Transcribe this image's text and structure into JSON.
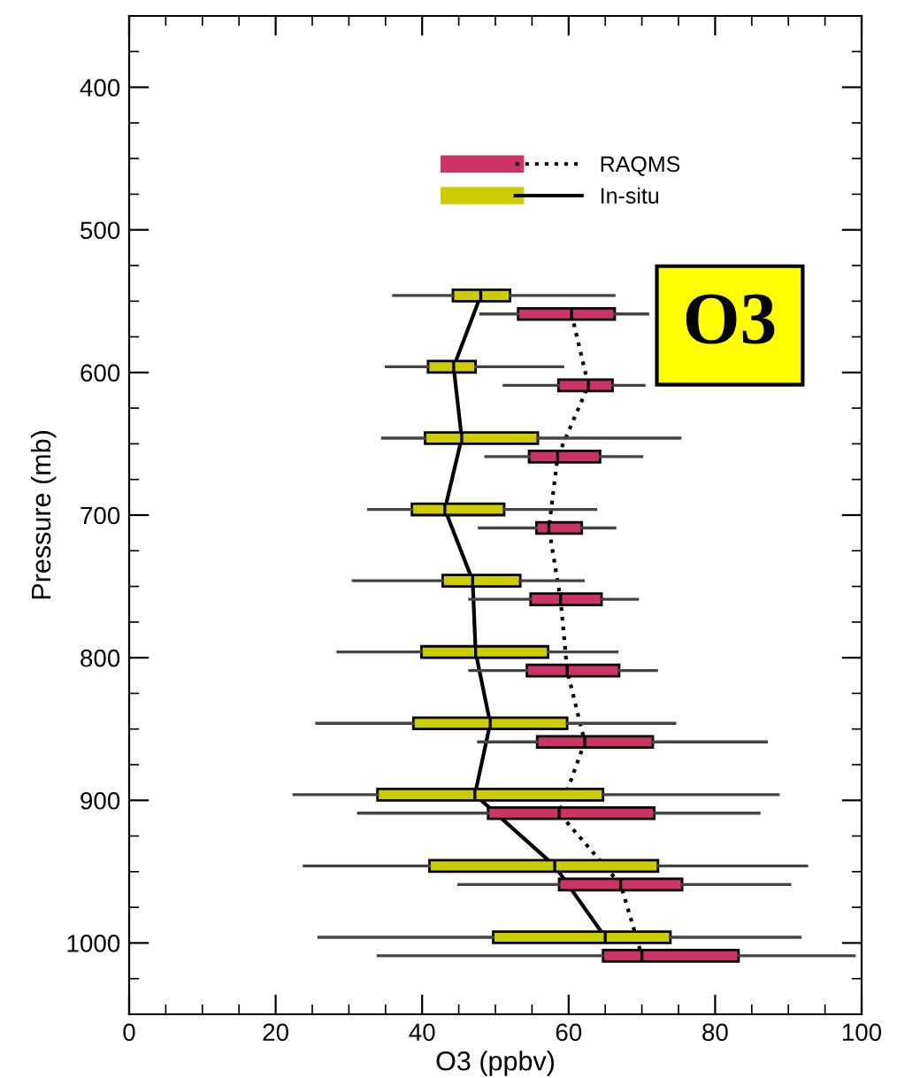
{
  "chart_data": {
    "type": "box",
    "orientation": "horizontal",
    "xlabel": "O3 (ppbv)",
    "ylabel": "Pressure (mb)",
    "xlim": [
      0,
      100
    ],
    "xticks": [
      0,
      20,
      40,
      60,
      80,
      100
    ],
    "ylim": [
      1050,
      350
    ],
    "yticks": [
      400,
      500,
      600,
      700,
      800,
      900,
      1000
    ],
    "grid": false,
    "legend": "top right",
    "annotations": [
      "O3"
    ],
    "series": [
      {
        "type": "line",
        "color": "#000000",
        "line_style": "dotted",
        "x": [
          559,
          609,
          659,
          709,
          759,
          809,
          859,
          909,
          959,
          1009
        ],
        "values": [
          60.4,
          62.7,
          58.5,
          57.3,
          58.9,
          59.8,
          62.2,
          58.7,
          67.1,
          70.0
        ]
      },
      {
        "type": "line",
        "color": "#000000",
        "line_style": "solid",
        "x": [
          546,
          596,
          646,
          696,
          746,
          796,
          846,
          896,
          946,
          996
        ],
        "values": [
          48.0,
          44.3,
          45.4,
          43.1,
          46.9,
          47.3,
          49.3,
          47.2,
          58.1,
          65.0
        ]
      },
      {
        "name": "RAQMS",
        "color": "#cc3366",
        "line_style": "dotted",
        "x": [
          559,
          609,
          659,
          709,
          759,
          809,
          859,
          909,
          959,
          1009
        ],
        "boxes": [
          {
            "low": 48.0,
            "q1": 53.1,
            "median": 60.4,
            "q3": 66.3,
            "high": 70.8
          },
          {
            "low": 51.2,
            "q1": 58.6,
            "median": 62.7,
            "q3": 66.0,
            "high": 70.3
          },
          {
            "low": 48.7,
            "q1": 54.6,
            "median": 58.5,
            "q3": 64.3,
            "high": 70.0
          },
          {
            "low": 47.8,
            "q1": 55.6,
            "median": 57.3,
            "q3": 61.8,
            "high": 66.3
          },
          {
            "low": 46.5,
            "q1": 54.8,
            "median": 58.9,
            "q3": 64.5,
            "high": 69.4
          },
          {
            "low": 46.5,
            "q1": 54.3,
            "median": 59.8,
            "q3": 66.9,
            "high": 72.0
          },
          {
            "low": 47.7,
            "q1": 55.7,
            "median": 62.2,
            "q3": 71.5,
            "high": 87.0
          },
          {
            "low": 31.3,
            "q1": 49.0,
            "median": 58.7,
            "q3": 71.7,
            "high": 86.0
          },
          {
            "low": 45.0,
            "q1": 58.7,
            "median": 67.1,
            "q3": 75.5,
            "high": 90.2
          },
          {
            "low": 34.0,
            "q1": 64.7,
            "median": 70.0,
            "q3": 83.2,
            "high": 99.0
          }
        ]
      },
      {
        "name": "In-situ",
        "color": "#cccc00",
        "line_style": "solid",
        "x": [
          546,
          596,
          646,
          696,
          746,
          796,
          846,
          896,
          946,
          996
        ],
        "boxes": [
          {
            "low": 36.1,
            "q1": 44.2,
            "median": 48.0,
            "q3": 52.0,
            "high": 66.2
          },
          {
            "low": 35.1,
            "q1": 40.8,
            "median": 44.3,
            "q3": 47.3,
            "high": 59.2
          },
          {
            "low": 34.6,
            "q1": 40.4,
            "median": 45.4,
            "q3": 55.8,
            "high": 75.2
          },
          {
            "low": 32.7,
            "q1": 38.6,
            "median": 43.1,
            "q3": 51.2,
            "high": 63.7
          },
          {
            "low": 30.6,
            "q1": 42.8,
            "median": 46.9,
            "q3": 53.4,
            "high": 62.0
          },
          {
            "low": 28.5,
            "q1": 39.9,
            "median": 47.3,
            "q3": 57.2,
            "high": 66.6
          },
          {
            "low": 25.6,
            "q1": 38.8,
            "median": 49.3,
            "q3": 59.8,
            "high": 74.5
          },
          {
            "low": 22.5,
            "q1": 33.9,
            "median": 47.2,
            "q3": 64.7,
            "high": 88.6
          },
          {
            "low": 23.9,
            "q1": 41.0,
            "median": 58.1,
            "q3": 72.2,
            "high": 92.5
          },
          {
            "low": 25.9,
            "q1": 49.7,
            "median": 65.0,
            "q3": 73.9,
            "high": 91.6
          }
        ]
      }
    ]
  }
}
